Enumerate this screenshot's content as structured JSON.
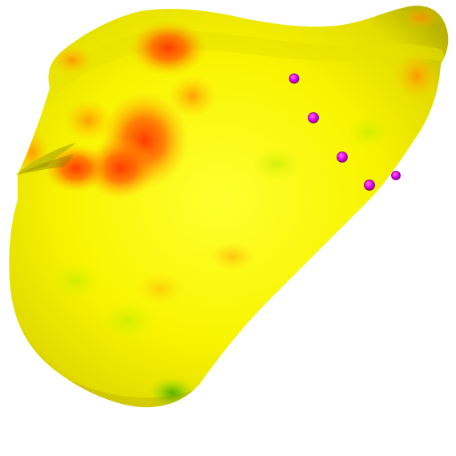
{
  "scene": {
    "background": "#ffffff",
    "surface_colors": {
      "base": "#f2f000",
      "highlight": "#ffff33",
      "warm": "#ff9a00",
      "hot": "#ff3a00",
      "cool": "#7ed400",
      "shadow": "#a9a300"
    },
    "marker": {
      "fill": "#e000e8",
      "stroke": "#7a007e",
      "count": 5
    }
  }
}
